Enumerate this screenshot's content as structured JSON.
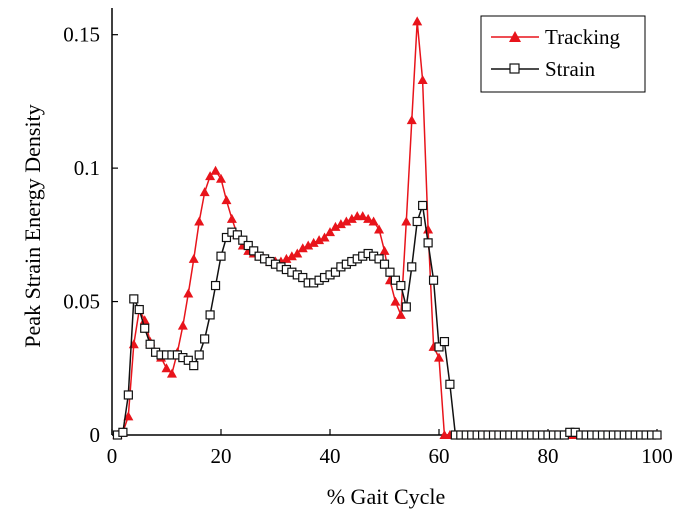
{
  "chart_data": {
    "type": "line",
    "title": "",
    "xlabel": "% Gait Cycle",
    "ylabel": "Peak Strain Energy Density",
    "xlim": [
      0,
      100
    ],
    "ylim": [
      0,
      0.16
    ],
    "xticks": [
      0,
      20,
      40,
      60,
      80,
      100
    ],
    "xtick_labels": [
      "0",
      "20",
      "40",
      "60",
      "80",
      "100"
    ],
    "yticks": [
      0,
      0.05,
      0.1,
      0.15
    ],
    "ytick_labels": [
      "0",
      "0.05",
      "0.1",
      "0.15"
    ],
    "grid": false,
    "legend_position": "top-right",
    "series": [
      {
        "name": "Tracking",
        "color": "#e8141b",
        "marker": "filled-triangle",
        "x": [
          1,
          2,
          3,
          4,
          5,
          6,
          7,
          8,
          9,
          10,
          11,
          12,
          13,
          14,
          15,
          16,
          17,
          18,
          19,
          20,
          21,
          22,
          23,
          24,
          25,
          26,
          27,
          28,
          29,
          30,
          31,
          32,
          33,
          34,
          35,
          36,
          37,
          38,
          39,
          40,
          41,
          42,
          43,
          44,
          45,
          46,
          47,
          48,
          49,
          50,
          51,
          52,
          53,
          54,
          55,
          56,
          57,
          58,
          59,
          60,
          61,
          62,
          63,
          64,
          65,
          66,
          67,
          68,
          69,
          70,
          71,
          72,
          73,
          74,
          75,
          76,
          77,
          78,
          79,
          80,
          81,
          82,
          83,
          84,
          85,
          86,
          87,
          88,
          89,
          90,
          91,
          92,
          93,
          94,
          95,
          96,
          97,
          98,
          99,
          100
        ],
        "y": [
          0.0,
          0.001,
          0.007,
          0.034,
          0.047,
          0.043,
          0.035,
          0.031,
          0.029,
          0.025,
          0.023,
          0.031,
          0.041,
          0.053,
          0.066,
          0.08,
          0.091,
          0.097,
          0.099,
          0.096,
          0.088,
          0.081,
          0.075,
          0.071,
          0.069,
          0.068,
          0.067,
          0.066,
          0.065,
          0.065,
          0.065,
          0.066,
          0.067,
          0.068,
          0.07,
          0.071,
          0.072,
          0.073,
          0.074,
          0.076,
          0.078,
          0.079,
          0.08,
          0.081,
          0.082,
          0.082,
          0.081,
          0.08,
          0.077,
          0.069,
          0.058,
          0.05,
          0.045,
          0.08,
          0.118,
          0.155,
          0.133,
          0.077,
          0.033,
          0.029,
          0.0,
          0.0,
          0.0,
          0.0,
          0.0,
          0.0,
          0.0,
          0.0,
          0.0,
          0.0,
          0.0,
          0.0,
          0.0,
          0.0,
          0.0,
          0.0,
          0.0,
          0.0,
          0.0,
          0.0,
          0.0,
          0.0,
          0.0,
          0.0,
          0.0,
          0.0,
          0.0,
          0.0,
          0.0,
          0.0,
          0.0,
          0.0,
          0.0,
          0.0,
          0.0,
          0.0,
          0.0,
          0.0,
          0.0,
          0.0
        ]
      },
      {
        "name": "Strain",
        "color": "#111111",
        "marker": "open-square",
        "x": [
          1,
          2,
          3,
          4,
          5,
          6,
          7,
          8,
          9,
          10,
          11,
          12,
          13,
          14,
          15,
          16,
          17,
          18,
          19,
          20,
          21,
          22,
          23,
          24,
          25,
          26,
          27,
          28,
          29,
          30,
          31,
          32,
          33,
          34,
          35,
          36,
          37,
          38,
          39,
          40,
          41,
          42,
          43,
          44,
          45,
          46,
          47,
          48,
          49,
          50,
          51,
          52,
          53,
          54,
          55,
          56,
          57,
          58,
          59,
          60,
          61,
          62,
          63,
          64,
          65,
          66,
          67,
          68,
          69,
          70,
          71,
          72,
          73,
          74,
          75,
          76,
          77,
          78,
          79,
          80,
          81,
          82,
          83,
          84,
          85,
          86,
          87,
          88,
          89,
          90,
          91,
          92,
          93,
          94,
          95,
          96,
          97,
          98,
          99,
          100
        ],
        "y": [
          0.0,
          0.001,
          0.015,
          0.051,
          0.047,
          0.04,
          0.034,
          0.031,
          0.03,
          0.03,
          0.03,
          0.03,
          0.029,
          0.028,
          0.026,
          0.03,
          0.036,
          0.045,
          0.056,
          0.067,
          0.074,
          0.076,
          0.075,
          0.073,
          0.071,
          0.069,
          0.067,
          0.066,
          0.065,
          0.064,
          0.063,
          0.062,
          0.061,
          0.06,
          0.059,
          0.057,
          0.057,
          0.058,
          0.059,
          0.06,
          0.061,
          0.063,
          0.064,
          0.065,
          0.066,
          0.067,
          0.068,
          0.067,
          0.066,
          0.064,
          0.061,
          0.058,
          0.056,
          0.048,
          0.063,
          0.08,
          0.086,
          0.072,
          0.058,
          0.033,
          0.035,
          0.019,
          0.0,
          0.0,
          0.0,
          0.0,
          0.0,
          0.0,
          0.0,
          0.0,
          0.0,
          0.0,
          0.0,
          0.0,
          0.0,
          0.0,
          0.0,
          0.0,
          0.0,
          0.0,
          0.0,
          0.0,
          0.0,
          0.001,
          0.001,
          0.0,
          0.0,
          0.0,
          0.0,
          0.0,
          0.0,
          0.0,
          0.0,
          0.0,
          0.0,
          0.0,
          0.0,
          0.0,
          0.0,
          0.0
        ]
      }
    ]
  }
}
